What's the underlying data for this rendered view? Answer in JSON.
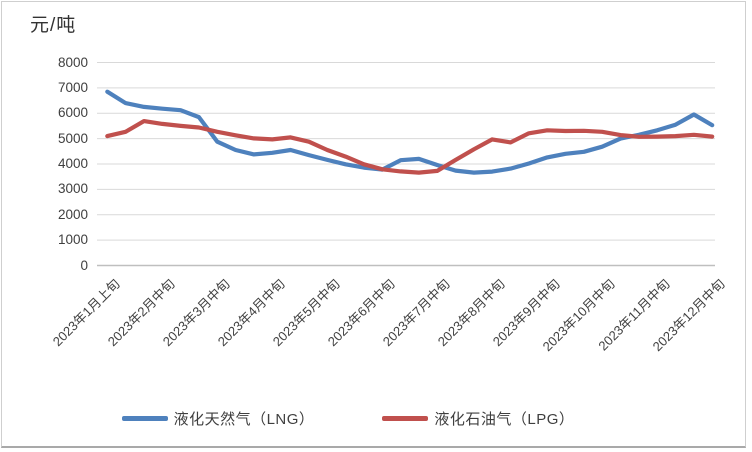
{
  "chart_data": {
    "type": "line",
    "title": "元/吨",
    "ylabel": "元/吨",
    "ylim": [
      0,
      8000
    ],
    "y_ticks": [
      0,
      1000,
      2000,
      3000,
      4000,
      5000,
      6000,
      7000,
      8000
    ],
    "grid": "horizontal",
    "legend_position": "bottom",
    "n_points": 34,
    "x_tick_indices": [
      0,
      3,
      6,
      9,
      12,
      15,
      18,
      21,
      24,
      27,
      30,
      33
    ],
    "x_tick_labels": [
      "2023年1月上旬",
      "2023年2月中旬",
      "2023年3月中旬",
      "2023年4月中旬",
      "2023年5月中旬",
      "2023年6月中旬",
      "2023年7月中旬",
      "2023年8月中旬",
      "2023年9月中旬",
      "2023年10月中旬",
      "2023年11月中旬",
      "2023年12月中旬"
    ],
    "series": [
      {
        "name": "液化天然气（LNG）",
        "color": "#4E81BD",
        "values": [
          6850,
          6400,
          6250,
          6180,
          6120,
          5850,
          4880,
          4550,
          4380,
          4440,
          4550,
          4350,
          4160,
          3990,
          3860,
          3780,
          4150,
          4200,
          3960,
          3740,
          3660,
          3700,
          3820,
          4020,
          4260,
          4400,
          4480,
          4680,
          5000,
          5150,
          5330,
          5550,
          5950,
          5530
        ]
      },
      {
        "name": "液化石油气（LPG）",
        "color": "#C0504D",
        "values": [
          5100,
          5270,
          5690,
          5580,
          5500,
          5440,
          5270,
          5130,
          5010,
          4970,
          5050,
          4880,
          4550,
          4290,
          3990,
          3790,
          3710,
          3660,
          3730,
          4160,
          4580,
          4970,
          4850,
          5210,
          5330,
          5300,
          5310,
          5270,
          5140,
          5070,
          5080,
          5100,
          5150,
          5080
        ]
      }
    ],
    "colors": {
      "gridline": "#d9d9d9",
      "axis_line": "#bfbfbf",
      "text": "#3f3f3f"
    }
  },
  "legend": {
    "lng_label": "液化天然气（LNG）",
    "lpg_label": "液化石油气（LPG）"
  }
}
